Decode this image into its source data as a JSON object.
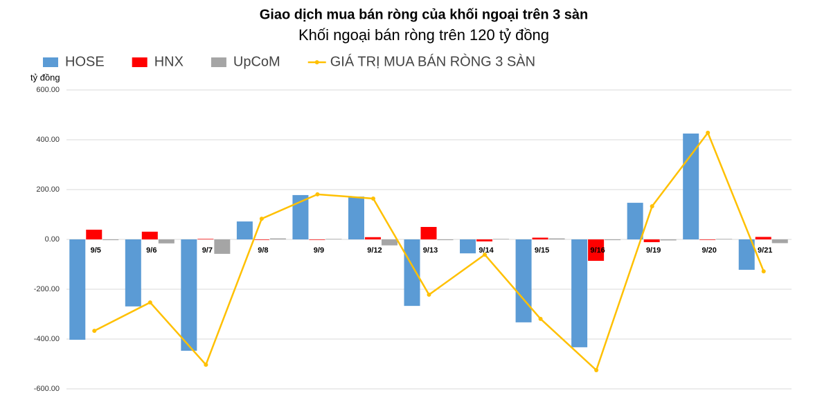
{
  "chart_data": {
    "type": "bar-line",
    "title": "Giao dịch mua bán ròng của khối ngoại trên 3 sàn",
    "subtitle": "Khối ngoại bán ròng trên 120 tỷ đồng",
    "y_label": "tỷ đồng",
    "categories": [
      "9/5",
      "9/6",
      "9/7",
      "9/8",
      "9/9",
      "9/12",
      "9/13",
      "9/14",
      "9/15",
      "9/16",
      "9/19",
      "9/20",
      "9/21"
    ],
    "series": [
      {
        "name": "HOSE",
        "type": "bar",
        "color": "#5b9bd5",
        "values": [
          -403,
          -269,
          -447,
          72,
          178,
          172,
          -267,
          -56,
          -333,
          -433,
          147,
          425,
          -122
        ]
      },
      {
        "name": "HNX",
        "type": "bar",
        "color": "#ff0000",
        "values": [
          39,
          31,
          2,
          -2,
          -2,
          9,
          50,
          -8,
          7,
          -86,
          -11,
          -2,
          10
        ]
      },
      {
        "name": "UpCoM",
        "type": "bar",
        "color": "#a5a5a5",
        "values": [
          -3,
          -16,
          -58,
          4,
          2,
          -24,
          -3,
          2,
          4,
          -3,
          -4,
          2,
          -15
        ]
      },
      {
        "name": "GIÁ TRỊ MUA BÁN RÒNG 3 SÀN",
        "type": "line",
        "color": "#ffc000",
        "values": [
          -367,
          -253,
          -503,
          83,
          181,
          164,
          -222,
          -61,
          -319,
          -525,
          133,
          428,
          -128
        ]
      }
    ],
    "ylim": [
      -600,
      600
    ],
    "yticks": [
      {
        "value": -600,
        "label": "-600.00"
      },
      {
        "value": -400,
        "label": "-400.00"
      },
      {
        "value": -200,
        "label": "-200.00"
      },
      {
        "value": 0,
        "label": "0.00"
      },
      {
        "value": 200,
        "label": "200.00"
      },
      {
        "value": 400,
        "label": "400.00"
      },
      {
        "value": 600,
        "label": "600.00"
      }
    ],
    "grid": true
  }
}
